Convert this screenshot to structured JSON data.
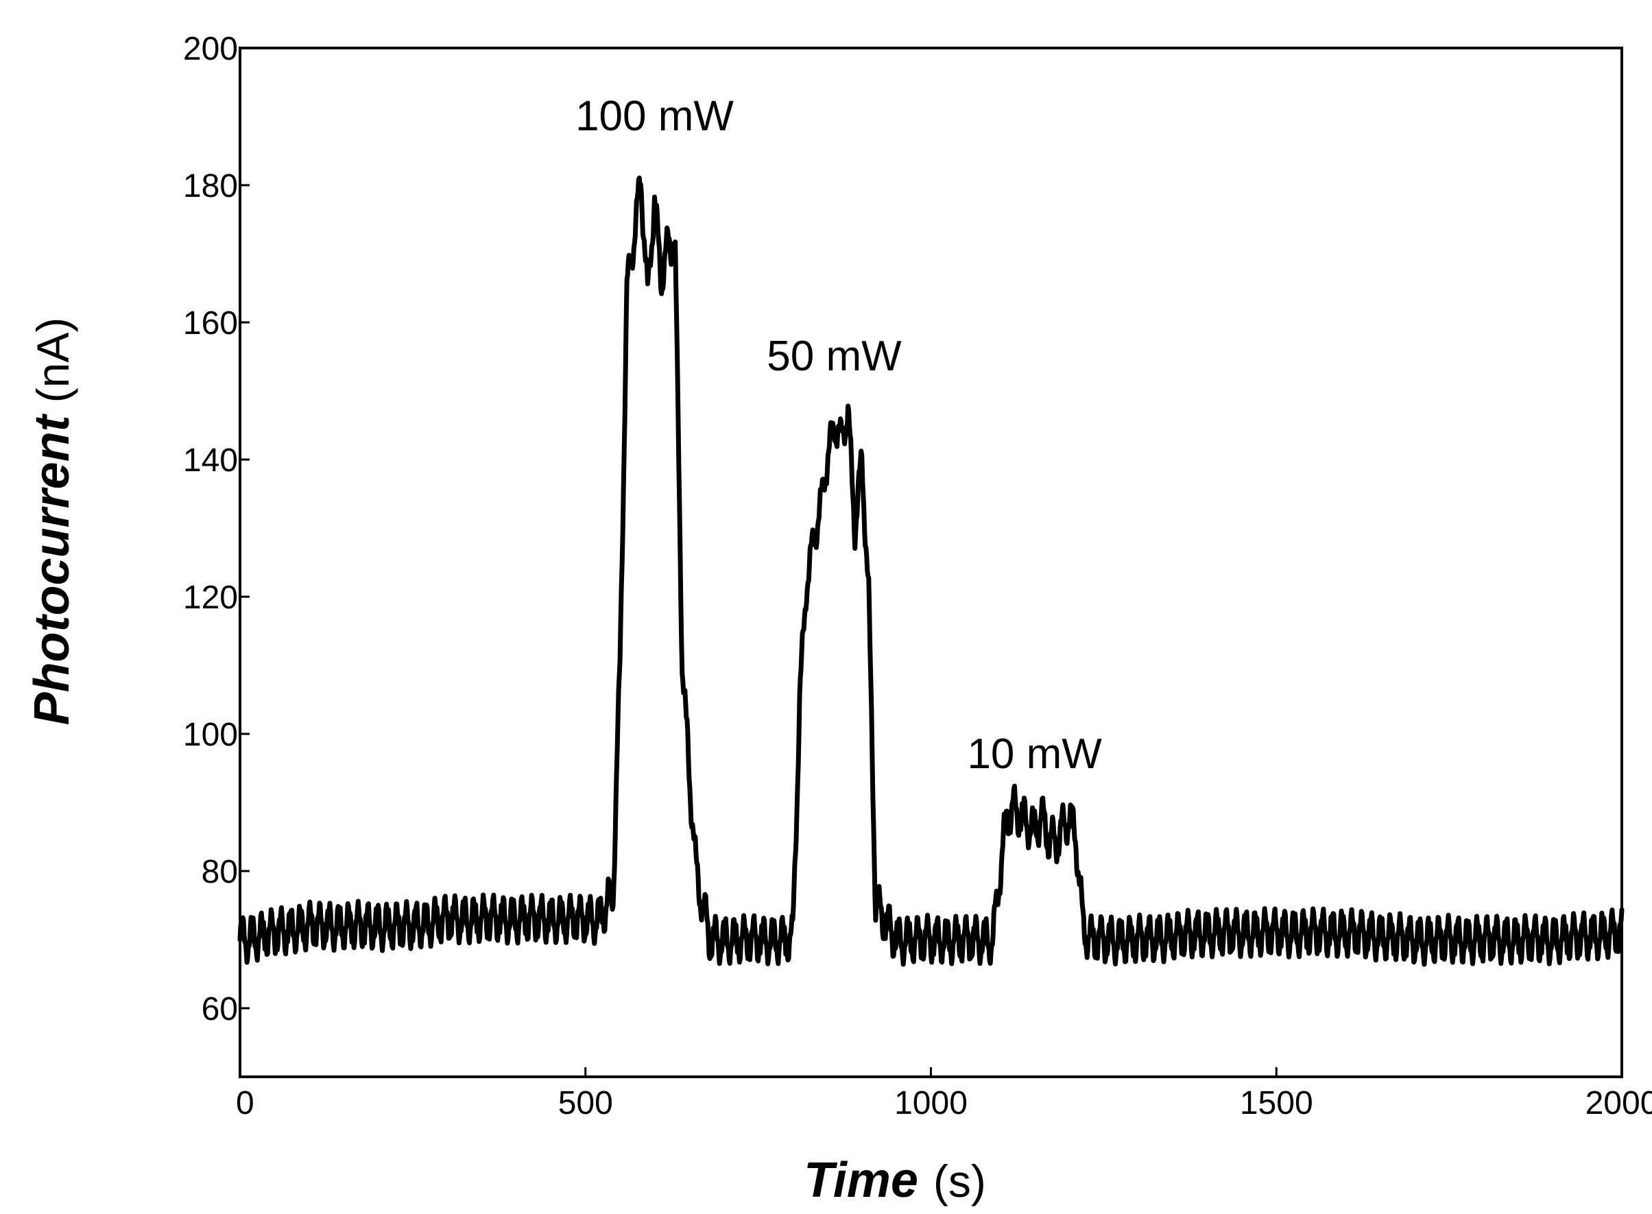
{
  "chart_data": {
    "type": "line",
    "title": "",
    "xlabel": "Time",
    "xlabel_unit": "(s)",
    "ylabel": "Photocurrent",
    "ylabel_unit": "(nA)",
    "xlim": [
      0,
      2000
    ],
    "ylim": [
      50,
      200
    ],
    "x_ticks": [
      0,
      500,
      1000,
      1500,
      2000
    ],
    "y_ticks": [
      60,
      80,
      100,
      120,
      140,
      160,
      180,
      200
    ],
    "x_tick_labels": [
      "0",
      "500",
      "1000",
      "1500",
      "2000"
    ],
    "y_tick_labels": [
      "60",
      "80",
      "100",
      "120",
      "140",
      "160",
      "180",
      "200"
    ],
    "grid": false,
    "legend": "none",
    "line_color": "#000000",
    "annotations": [
      {
        "text": "100 mW",
        "x": 600,
        "y": 188
      },
      {
        "text": "50 mW",
        "x": 860,
        "y": 153
      },
      {
        "text": "10 mW",
        "x": 1150,
        "y": 95
      }
    ],
    "series": [
      {
        "x": [
          0,
          50,
          100,
          150,
          200,
          250,
          300,
          350,
          400,
          450,
          500,
          520,
          530,
          540,
          550,
          560,
          570,
          580,
          590,
          600,
          610,
          620,
          630,
          640,
          660,
          680,
          700,
          720,
          740,
          770,
          790,
          800,
          810,
          820,
          830,
          840,
          850,
          860,
          870,
          880,
          890,
          900,
          910,
          920,
          950,
          1000,
          1050,
          1080,
          1090,
          1100,
          1110,
          1120,
          1130,
          1140,
          1150,
          1160,
          1170,
          1180,
          1190,
          1200,
          1210,
          1220,
          1230,
          1300,
          1400,
          1500,
          1600,
          1700,
          1800,
          1900,
          2000
        ],
        "y": [
          70,
          71,
          72,
          72,
          72,
          72,
          73,
          73,
          73,
          73,
          73,
          73,
          75,
          77,
          110,
          165,
          172,
          181,
          164,
          178,
          166,
          172,
          170,
          110,
          80,
          70,
          70,
          70,
          70,
          70,
          70,
          70,
          105,
          122,
          128,
          133,
          140,
          145,
          143,
          147,
          130,
          140,
          120,
          75,
          70,
          70,
          70,
          70,
          70,
          80,
          88,
          89,
          88,
          87,
          86,
          88,
          85,
          84,
          86,
          88,
          85,
          72,
          70,
          70,
          71,
          71,
          71,
          70,
          70,
          70,
          71
        ]
      }
    ]
  }
}
